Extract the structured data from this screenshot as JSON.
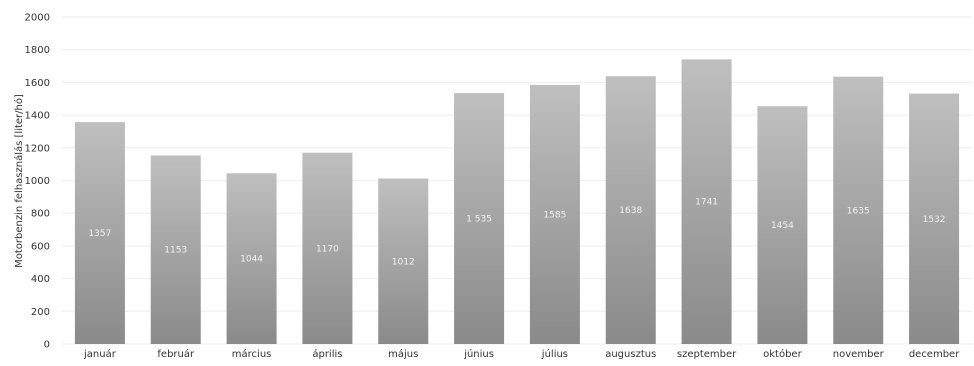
{
  "chart_data": {
    "type": "bar",
    "title": "",
    "xlabel": "",
    "ylabel": "Motorbenzin felhasználás [liter/hó]",
    "ylim": [
      0,
      2000
    ],
    "yticks": [
      0,
      200,
      400,
      600,
      800,
      1000,
      1200,
      1400,
      1600,
      1800,
      2000
    ],
    "grid": true,
    "legend": "none",
    "categories": [
      "január",
      "február",
      "március",
      "április",
      "május",
      "június",
      "július",
      "augusztus",
      "szeptember",
      "október",
      "november",
      "december"
    ],
    "values": [
      1357,
      1153,
      1044,
      1170,
      1012,
      1535,
      1585,
      1638,
      1741,
      1454,
      1635,
      1532
    ],
    "value_labels": [
      "1357",
      "1153",
      "1044",
      "1170",
      "1012",
      "1 535",
      "1585",
      "1638",
      "1741",
      "1454",
      "1635",
      "1532"
    ],
    "colors": {
      "bar_top": "#bfbfbf",
      "bar_bottom": "#8a8a8a",
      "grid": "#eeeeee",
      "text": "#333333"
    }
  }
}
